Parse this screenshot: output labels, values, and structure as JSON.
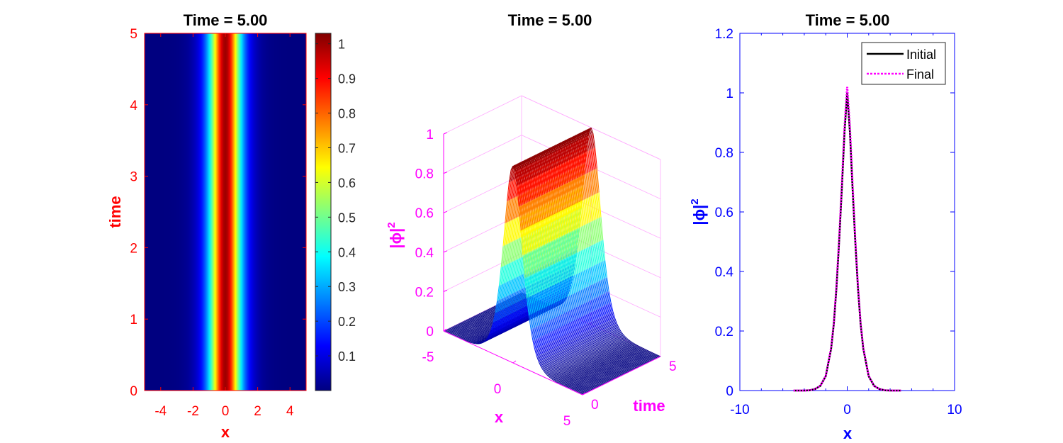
{
  "chart_data": [
    {
      "type": "heatmap",
      "title": "Time = 5.00",
      "xlabel": "x",
      "ylabel": "time",
      "xlim": [
        -5,
        5
      ],
      "ylim": [
        0,
        5
      ],
      "xticks": [
        "-4",
        "-2",
        "0",
        "2",
        "4"
      ],
      "yticks": [
        "0",
        "1",
        "2",
        "3",
        "4",
        "5"
      ],
      "colormap": "jet",
      "field": "|phi|^2 = sech^2(1.1 x), constant in time",
      "colorbar": {
        "range": [
          0.0,
          1.03
        ],
        "ticks": [
          "0.1",
          "0.2",
          "0.3",
          "0.4",
          "0.5",
          "0.6",
          "0.7",
          "0.8",
          "0.9",
          "1"
        ]
      },
      "axis_color": "#ff0000"
    },
    {
      "type": "line",
      "title": "Time = 5.00",
      "xlabel": "x",
      "ylabel": "|ϕ|",
      "ylabel_sup": "2",
      "zlabel_time": "time",
      "xlim": [
        -5,
        5
      ],
      "tlim": [
        0,
        5
      ],
      "zlim": [
        0,
        1
      ],
      "xticks": [
        "-5",
        "0",
        "5"
      ],
      "tticks": [
        "0",
        "5"
      ],
      "zticks": [
        "0",
        "0.2",
        "0.4",
        "0.6",
        "0.8",
        "1"
      ],
      "series": [
        {
          "values": "|phi|^2 = sech^2(1.1 x) repeated along time 0..5, colored by value (jet)"
        }
      ],
      "axis_color": "#ff00ff"
    },
    {
      "type": "line",
      "title": "Time = 5.00",
      "xlabel": "x",
      "ylabel": "|ϕ|",
      "ylabel_sup": "2",
      "xlim": [
        -10,
        10
      ],
      "ylim": [
        0,
        1.2
      ],
      "xticks": [
        "-10",
        "0",
        "10"
      ],
      "yticks": [
        "0",
        "0.2",
        "0.4",
        "0.6",
        "0.8",
        "1",
        "1.2"
      ],
      "legend": "top-right",
      "series": [
        {
          "name": "Initial",
          "color": "#000000",
          "style": "solid",
          "x": [
            -5,
            -4.5,
            -4,
            -3.5,
            -3,
            -2.5,
            -2,
            -1.5,
            -1.25,
            -1,
            -0.75,
            -0.5,
            -0.25,
            0,
            0.25,
            0.5,
            0.75,
            1,
            1.25,
            1.5,
            2,
            2.5,
            3,
            3.5,
            4,
            4.5,
            5
          ],
          "y": [
            0.0,
            0.0,
            0.0,
            0.001,
            0.005,
            0.016,
            0.048,
            0.14,
            0.223,
            0.343,
            0.499,
            0.676,
            0.868,
            1.0,
            0.868,
            0.676,
            0.499,
            0.343,
            0.223,
            0.14,
            0.048,
            0.016,
            0.005,
            0.001,
            0.0,
            0.0,
            0.0
          ]
        },
        {
          "name": "Final",
          "color": "#ff00ff",
          "style": "dotted",
          "x": [
            -5,
            -4.5,
            -4,
            -3.5,
            -3,
            -2.5,
            -2,
            -1.5,
            -1.25,
            -1,
            -0.75,
            -0.5,
            -0.25,
            0,
            0.25,
            0.5,
            0.75,
            1,
            1.25,
            1.5,
            2,
            2.5,
            3,
            3.5,
            4,
            4.5,
            5
          ],
          "y": [
            0.0,
            0.0,
            0.0,
            0.001,
            0.005,
            0.016,
            0.049,
            0.143,
            0.227,
            0.35,
            0.509,
            0.69,
            0.885,
            1.02,
            0.885,
            0.69,
            0.509,
            0.35,
            0.227,
            0.143,
            0.049,
            0.016,
            0.005,
            0.001,
            0.0,
            0.0,
            0.0
          ]
        }
      ],
      "axis_color": "#0000ff"
    }
  ]
}
